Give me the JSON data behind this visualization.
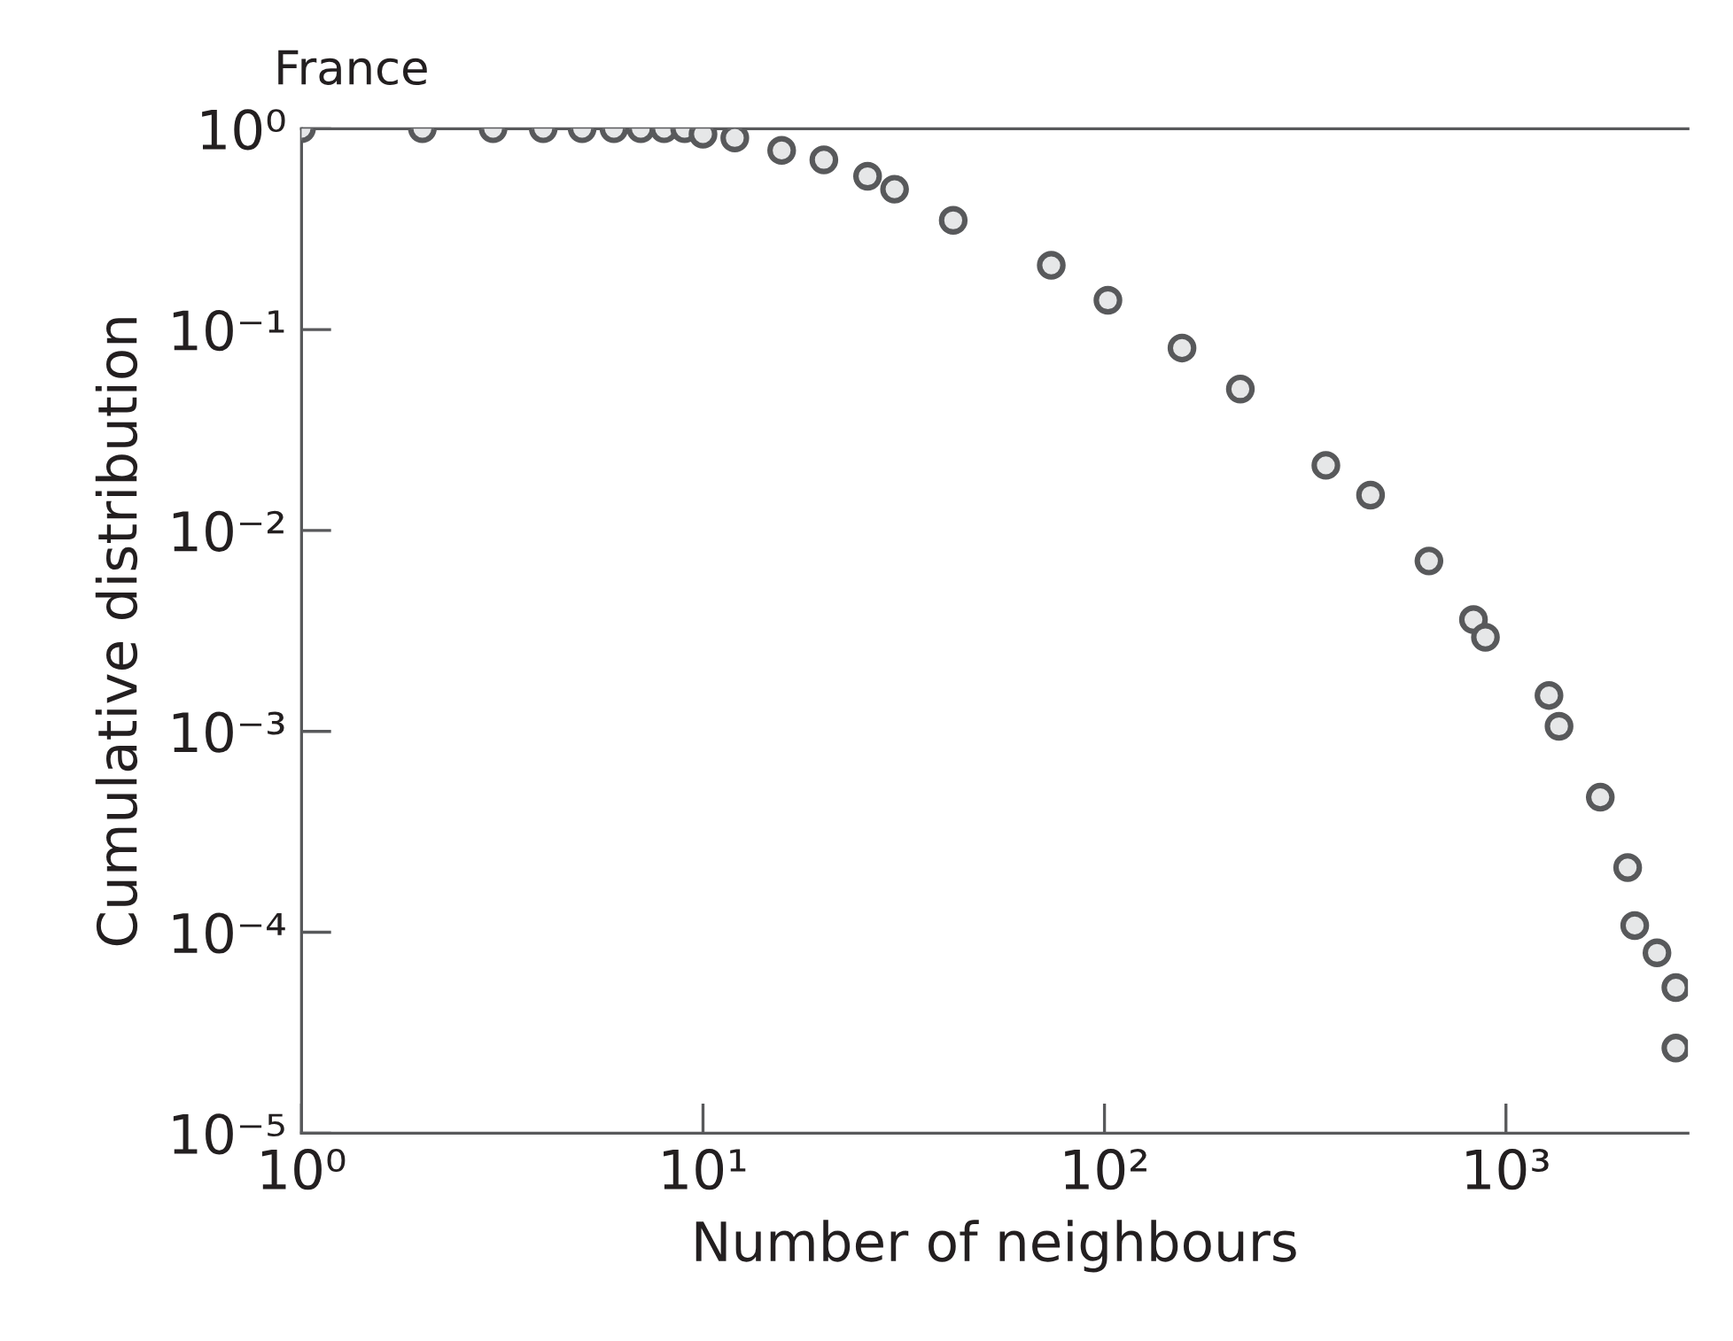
{
  "chart_data": {
    "type": "scatter",
    "title": "France",
    "xlabel": "Number of neighbours",
    "ylabel": "Cumulative distribution",
    "log": "xy",
    "marker": "circle",
    "grid": false,
    "xlim": [
      1,
      2840
    ],
    "ylim": [
      1e-05,
      1
    ],
    "xticks": [
      {
        "value": 1,
        "label": "10⁰"
      },
      {
        "value": 10,
        "label": "10¹"
      },
      {
        "value": 100,
        "label": "10²"
      },
      {
        "value": 1000,
        "label": "10³"
      }
    ],
    "yticks": [
      {
        "value": 1e-05,
        "label": "10⁻⁵"
      },
      {
        "value": 0.0001,
        "label": "10⁻⁴"
      },
      {
        "value": 0.001,
        "label": "10⁻³"
      },
      {
        "value": 0.01,
        "label": "10⁻²"
      },
      {
        "value": 0.1,
        "label": "10⁻¹"
      },
      {
        "value": 1,
        "label": "10⁰"
      }
    ],
    "series": [
      {
        "color": "#58595b",
        "x": [
          1,
          2,
          3,
          4,
          5,
          6,
          7,
          8,
          9,
          10,
          12,
          15.7,
          20,
          25.7,
          30,
          42,
          73.7,
          102,
          156,
          218,
          356,
          460,
          643,
          830,
          889,
          1280,
          1356,
          1718,
          2010,
          2093,
          2378,
          2650,
          2650
        ],
        "values": [
          1,
          1,
          1,
          1,
          1,
          1,
          1,
          1,
          1,
          0.94,
          0.9,
          0.78,
          0.7,
          0.58,
          0.5,
          0.35,
          0.209,
          0.14,
          0.081,
          0.0506,
          0.0211,
          0.015,
          0.00705,
          0.0036,
          0.00294,
          0.00151,
          0.00106,
          0.00047,
          0.00021,
          0.000108,
          7.9e-05,
          5.3e-05,
          2.65e-05
        ]
      }
    ]
  }
}
